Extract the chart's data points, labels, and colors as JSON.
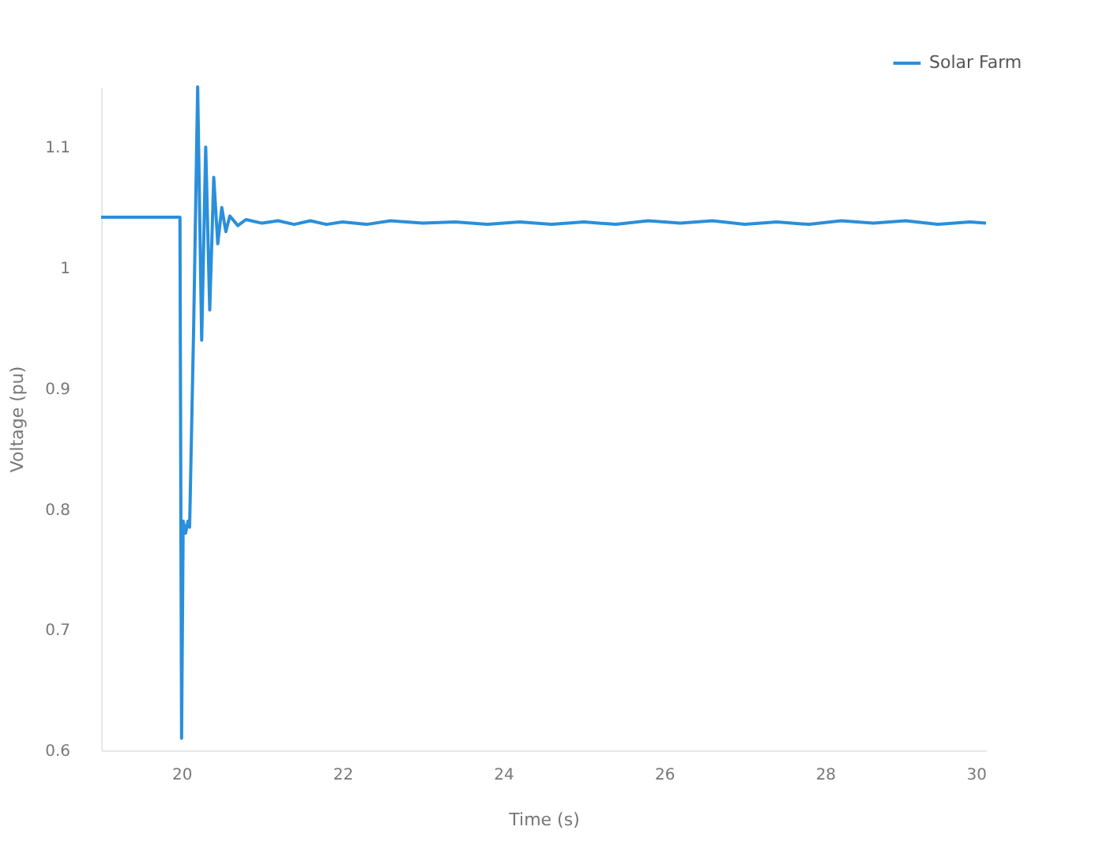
{
  "chart_data": {
    "type": "line",
    "xlabel": "Time (s)",
    "ylabel": "Voltage (pu)",
    "xlim": [
      19.0,
      30.0
    ],
    "ylim": [
      0.6,
      1.15
    ],
    "xticks": [
      20,
      22,
      24,
      26,
      28,
      30
    ],
    "yticks": [
      0.6,
      0.7,
      0.8,
      0.9,
      1,
      1.1
    ],
    "grid": false,
    "legend": "top right",
    "series": [
      {
        "name": "Solar Farm",
        "color": "#2a8fdc",
        "x": [
          19.0,
          19.98,
          20.0,
          20.02,
          20.05,
          20.08,
          20.1,
          20.15,
          20.2,
          20.25,
          20.3,
          20.35,
          20.4,
          20.45,
          20.5,
          20.55,
          20.6,
          20.7,
          20.8,
          21.0,
          21.2,
          21.4,
          21.6,
          21.8,
          22.0,
          22.3,
          22.6,
          23.0,
          23.4,
          23.8,
          24.2,
          24.6,
          25.0,
          25.4,
          25.8,
          26.2,
          26.6,
          27.0,
          27.4,
          27.8,
          28.2,
          28.6,
          29.0,
          29.4,
          29.8,
          30.0
        ],
        "values": [
          1.042,
          1.042,
          0.61,
          0.79,
          0.78,
          0.79,
          0.785,
          0.95,
          1.15,
          0.94,
          1.1,
          0.965,
          1.075,
          1.02,
          1.05,
          1.03,
          1.043,
          1.035,
          1.04,
          1.037,
          1.039,
          1.036,
          1.039,
          1.036,
          1.038,
          1.036,
          1.039,
          1.037,
          1.038,
          1.036,
          1.038,
          1.036,
          1.038,
          1.036,
          1.039,
          1.037,
          1.039,
          1.036,
          1.038,
          1.036,
          1.039,
          1.037,
          1.039,
          1.036,
          1.038,
          1.037
        ]
      }
    ]
  }
}
